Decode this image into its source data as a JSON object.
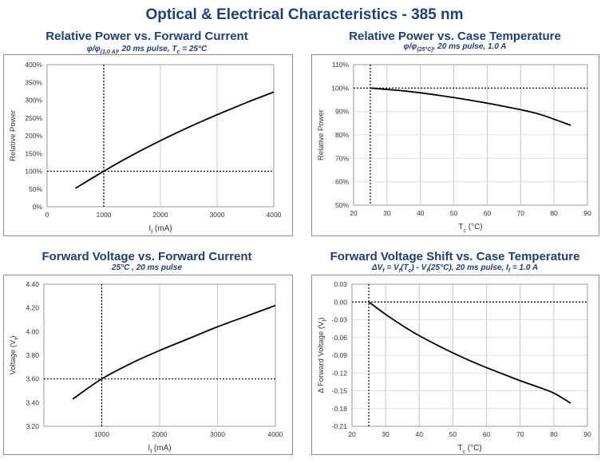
{
  "page": {
    "title": "Optical & Electrical Characteristics - 385 nm"
  },
  "chart_data": [
    {
      "id": "c1",
      "type": "line",
      "title": "Relative Power vs. Forward Current",
      "subtitle": "φ/φ(1.0 A), 20 ms pulse, Tc = 25°C",
      "subtitle_parts": {
        "pre": "φ/φ",
        "sub1": "(1.0 A)",
        "mid": ", 20 ms  pulse, T",
        "sub2": "c",
        "post": " = 25°C"
      },
      "xlabel": "If (mA)",
      "xlabel_parts": {
        "main": "I",
        "sub": "f",
        "post": " (mA)"
      },
      "ylabel": "Relative Power",
      "xlim": [
        0,
        4000
      ],
      "ylim": [
        0,
        400
      ],
      "x_ticks": [
        0,
        1000,
        2000,
        3000,
        4000
      ],
      "y_ticks": [
        0,
        50,
        100,
        150,
        200,
        250,
        300,
        350,
        400
      ],
      "y_tick_labels": [
        "0%",
        "50%",
        "100%",
        "150%",
        "200%",
        "250%",
        "300%",
        "350%",
        "400%"
      ],
      "x_tick_labels": [
        "0",
        "1000",
        "2000",
        "3000",
        "4000"
      ],
      "reference_lines": {
        "x": 1000,
        "y": 100
      },
      "series": [
        {
          "name": "Relative Power",
          "x": [
            500,
            1000,
            1500,
            2000,
            2500,
            3000,
            3500,
            4000
          ],
          "y": [
            52,
            100,
            145,
            186,
            224,
            259,
            292,
            323
          ]
        }
      ]
    },
    {
      "id": "c2",
      "type": "line",
      "title": "Relative Power vs. Case Temperature",
      "subtitle": "φ/φ(25°C), 20 ms pulse, 1.0 A",
      "subtitle_parts": {
        "pre": "φ/φ",
        "sub1": "(25°C)",
        "mid": ", 20 ms  pulse, 1.0 A",
        "sub2": "",
        "post": ""
      },
      "xlabel": "Tc (°C)",
      "xlabel_parts": {
        "main": "T",
        "sub": "c",
        "post": " (°C)"
      },
      "ylabel": "Relative Power",
      "xlim": [
        20,
        90
      ],
      "ylim": [
        50,
        110
      ],
      "x_ticks": [
        20,
        30,
        40,
        50,
        60,
        70,
        80,
        90
      ],
      "y_ticks": [
        50,
        60,
        70,
        80,
        90,
        100,
        110
      ],
      "y_tick_labels": [
        "50%",
        "60%",
        "70%",
        "80%",
        "90%",
        "100%",
        "110%"
      ],
      "x_tick_labels": [
        "20",
        "30",
        "40",
        "50",
        "60",
        "70",
        "80",
        "90"
      ],
      "reference_lines": {
        "x": 25,
        "y": 100
      },
      "series": [
        {
          "name": "Relative Power",
          "x": [
            25,
            35,
            45,
            55,
            65,
            75,
            85
          ],
          "y": [
            100,
            98.8,
            97.0,
            94.8,
            92.2,
            89.1,
            84.1
          ]
        }
      ]
    },
    {
      "id": "c3",
      "type": "line",
      "title": "Forward Voltage vs. Forward Current",
      "subtitle": "25°C , 20 ms pulse",
      "subtitle_parts": {
        "pre": "25°C , 20 ms pulse",
        "sub1": "",
        "mid": "",
        "sub2": "",
        "post": ""
      },
      "xlabel": "If (mA)",
      "xlabel_parts": {
        "main": "I",
        "sub": "f",
        "post": " (mA)"
      },
      "ylabel": "Voltage (Vf)",
      "ylabel_parts": {
        "main": "Voltage (V",
        "sub": "f",
        "post": ")"
      },
      "xlim": [
        0,
        4000
      ],
      "ylim": [
        3.2,
        4.4
      ],
      "x_ticks": [
        1000,
        2000,
        3000,
        4000
      ],
      "y_ticks": [
        3.2,
        3.4,
        3.6,
        3.8,
        4.0,
        4.2,
        4.4
      ],
      "y_tick_labels": [
        "3.20",
        "3.40",
        "3.60",
        "3.80",
        "4.00",
        "4.20",
        "4.40"
      ],
      "x_tick_labels": [
        "1000",
        "2000",
        "3000",
        "4000"
      ],
      "reference_lines": {
        "x": 1000,
        "y": 3.6
      },
      "series": [
        {
          "name": "Forward Voltage",
          "x": [
            500,
            1000,
            1500,
            2000,
            2500,
            3000,
            3500,
            4000
          ],
          "y": [
            3.43,
            3.6,
            3.73,
            3.84,
            3.94,
            4.04,
            4.13,
            4.22
          ]
        }
      ]
    },
    {
      "id": "c4",
      "type": "line",
      "title": "Forward Voltage Shift vs. Case Temperature",
      "subtitle": "ΔVf = Vf(Tc) - Vf(25°C), 20 ms pulse, If = 1.0 A",
      "subtitle_parts": {
        "pre": "ΔV",
        "sub1": "f",
        "mid": " = V",
        "sub2": "f",
        "post": "(T",
        "sub3": "c",
        "post2": ") - V",
        "sub4": "f",
        "post3": "(25°C), 20 ms pulse, I",
        "sub5": "f",
        "post4": " = 1.0 A"
      },
      "xlabel": "Tc (°C)",
      "xlabel_parts": {
        "main": "T",
        "sub": "c",
        "post": " (°C)"
      },
      "ylabel": "Δ Forward Voltage (Vf)",
      "ylabel_parts": {
        "main": "Δ Forward Voltage (V",
        "sub": "f",
        "post": ")"
      },
      "xlim": [
        20,
        90
      ],
      "ylim": [
        -0.21,
        0.03
      ],
      "x_ticks": [
        20,
        30,
        40,
        50,
        60,
        70,
        80,
        90
      ],
      "y_ticks": [
        -0.21,
        -0.18,
        -0.15,
        -0.12,
        -0.09,
        -0.06,
        -0.03,
        0.0,
        0.03
      ],
      "y_tick_labels": [
        "-0.21",
        "-0.18",
        "-0.15",
        "-0.12",
        "-0.09",
        "-0.06",
        "-0.03",
        "0.00",
        "0.03"
      ],
      "x_tick_labels": [
        "20",
        "30",
        "40",
        "50",
        "60",
        "70",
        "80",
        "90"
      ],
      "reference_lines": {
        "x": 25,
        "y": 0.0
      },
      "series": [
        {
          "name": "Forward Voltage Shift",
          "x": [
            25,
            30,
            35,
            40,
            45,
            50,
            55,
            60,
            65,
            70,
            75,
            80,
            85
          ],
          "y": [
            0.0,
            -0.021,
            -0.04,
            -0.057,
            -0.072,
            -0.086,
            -0.099,
            -0.111,
            -0.122,
            -0.133,
            -0.143,
            -0.154,
            -0.171
          ]
        }
      ]
    }
  ]
}
